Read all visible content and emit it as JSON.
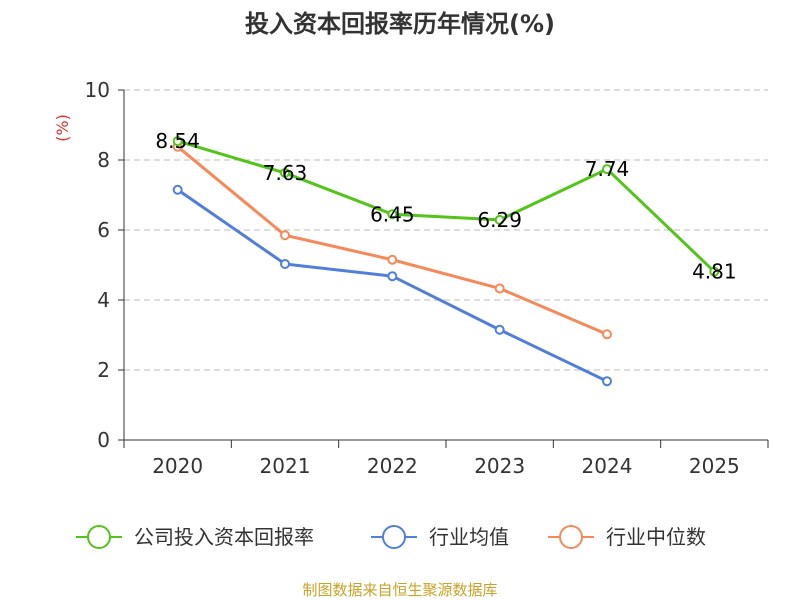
{
  "chart_data": {
    "type": "line",
    "title": "投入资本回报率历年情况(%)",
    "ylabel": "(%)",
    "xlabel": "",
    "categories": [
      "2020",
      "2021",
      "2022",
      "2023",
      "2024",
      "2025"
    ],
    "ylim": [
      0,
      10
    ],
    "yticks": [
      0,
      2,
      4,
      6,
      8,
      10
    ],
    "grid": true,
    "legend_position": "bottom",
    "series": [
      {
        "name": "公司投入资本回报率",
        "color": "#52c41a",
        "values": [
          8.54,
          7.63,
          6.45,
          6.29,
          7.74,
          4.81
        ],
        "labels": [
          "8.54",
          "7.63",
          "6.45",
          "6.29",
          "7.74",
          "4.81"
        ]
      },
      {
        "name": "行业均值",
        "color": "#4f7fdb",
        "values": [
          7.15,
          5.03,
          4.68,
          3.15,
          1.68,
          null
        ]
      },
      {
        "name": "行业中位数",
        "color": "#f5895a",
        "values": [
          8.38,
          5.85,
          5.15,
          4.33,
          3.02,
          null
        ]
      }
    ]
  },
  "source_note": "制图数据来自恒生聚源数据库",
  "colors": {
    "ylabel": "#e0312b",
    "source": "#c9a227"
  }
}
